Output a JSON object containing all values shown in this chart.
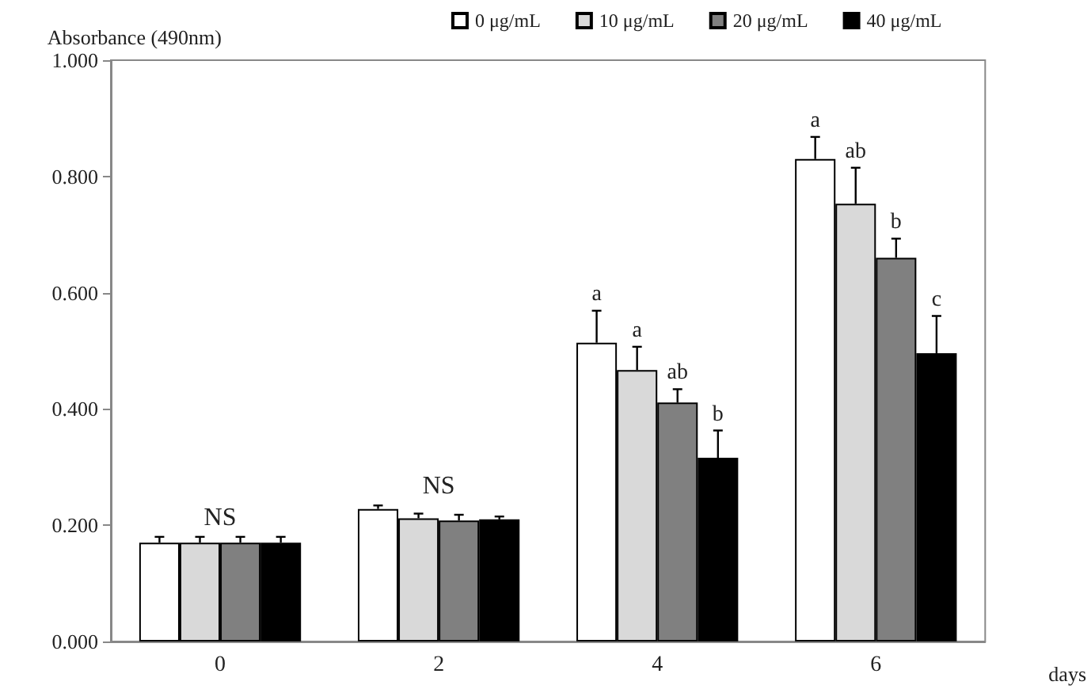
{
  "chart_data": {
    "type": "bar",
    "xlabel": "days",
    "ylabel": "Absorbance (490nm)",
    "categories": [
      "0",
      "2",
      "4",
      "6"
    ],
    "series": [
      {
        "name": "0 μg/mL",
        "color": "#ffffff",
        "values": [
          0.17,
          0.228,
          0.514,
          0.83
        ],
        "errors": [
          0.01,
          0.006,
          0.055,
          0.038
        ],
        "value_labels": [
          null,
          null,
          "a",
          "a"
        ]
      },
      {
        "name": "10 μg/mL",
        "color": "#d9d9d9",
        "values": [
          0.17,
          0.212,
          0.467,
          0.753
        ],
        "errors": [
          0.01,
          0.008,
          0.04,
          0.062
        ],
        "value_labels": [
          null,
          null,
          "a",
          "ab"
        ]
      },
      {
        "name": "20 μg/mL",
        "color": "#808080",
        "values": [
          0.17,
          0.208,
          0.411,
          0.66
        ],
        "errors": [
          0.01,
          0.01,
          0.023,
          0.033
        ],
        "value_labels": [
          null,
          null,
          "ab",
          "b"
        ]
      },
      {
        "name": "40 μg/mL",
        "color": "#000000",
        "values": [
          0.17,
          0.21,
          0.316,
          0.496
        ],
        "errors": [
          0.01,
          0.005,
          0.047,
          0.064
        ],
        "value_labels": [
          null,
          null,
          "b",
          "c"
        ]
      }
    ],
    "ylim": [
      0,
      1
    ],
    "yticks": [
      {
        "value": 0,
        "label": "0.000"
      },
      {
        "value": 0.2,
        "label": "0.200"
      },
      {
        "value": 0.4,
        "label": "0.400"
      },
      {
        "value": 0.6,
        "label": "0.600"
      },
      {
        "value": 0.8,
        "label": "0.800"
      },
      {
        "value": 1,
        "label": "1.000"
      }
    ],
    "annotations": [
      "NS",
      "NS"
    ],
    "legend": "top",
    "grid": false
  }
}
